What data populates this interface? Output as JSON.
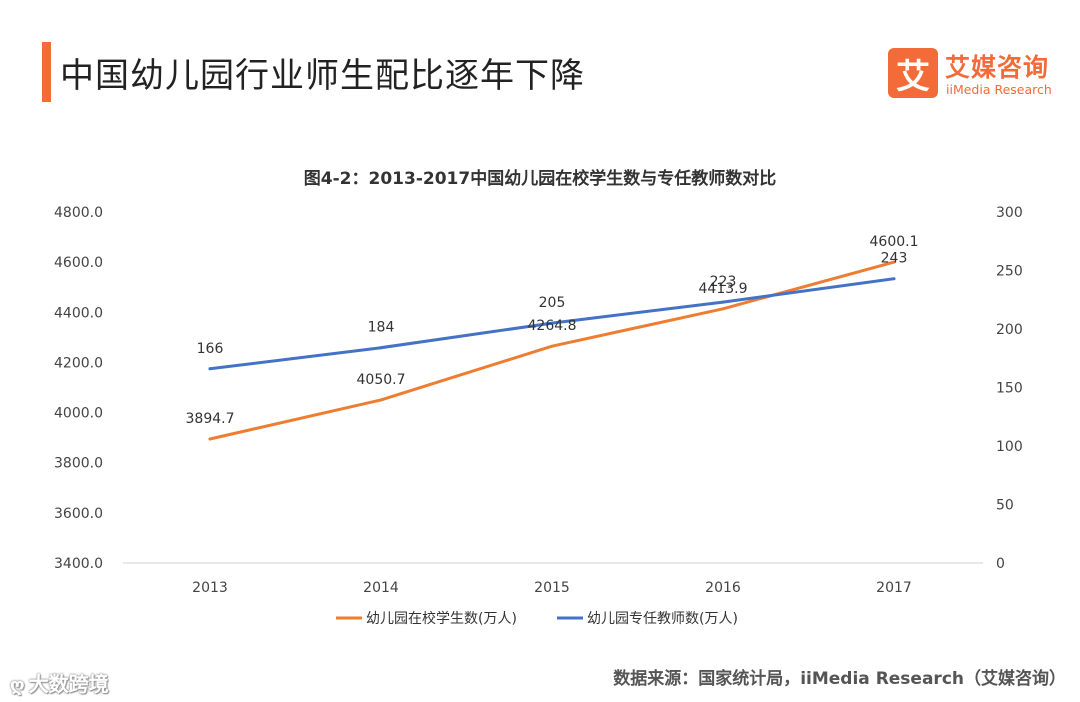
{
  "header": {
    "title": "中国幼儿园行业师生配比逐年下降",
    "accent_color": "#F26B38"
  },
  "logo": {
    "mark": "艾",
    "name_cn": "艾媒咨询",
    "name_en": "iiMedia Research",
    "color": "#F26B38"
  },
  "chart_data": {
    "type": "line",
    "title": "图4-2：2013-2017中国幼儿园在校学生数与专任教师数对比",
    "categories": [
      "2013",
      "2014",
      "2015",
      "2016",
      "2017"
    ],
    "left_axis": {
      "min": 3400,
      "max": 4800,
      "ticks": [
        "4800.0",
        "4600.0",
        "4400.0",
        "4200.0",
        "4000.0",
        "3800.0",
        "3600.0",
        "3400.0"
      ]
    },
    "right_axis": {
      "min": 0,
      "max": 300,
      "ticks": [
        "300",
        "250",
        "200",
        "150",
        "100",
        "50",
        "0"
      ]
    },
    "series": [
      {
        "name": "幼儿园在校学生数(万人)",
        "axis": "left",
        "color": "#ED7D31",
        "values": [
          3894.7,
          4050.7,
          4264.8,
          4413.9,
          4600.1
        ],
        "labels": [
          "3894.7",
          "4050.7",
          "4264.8",
          "4413.9",
          "4600.1"
        ]
      },
      {
        "name": "幼儿园专任教师数(万人)",
        "axis": "right",
        "color": "#4472C4",
        "values": [
          166,
          184,
          205,
          223,
          243
        ],
        "labels": [
          "166",
          "184",
          "205",
          "223",
          "243"
        ]
      }
    ],
    "legend_position": "bottom",
    "grid": false
  },
  "footer": {
    "source": "数据来源：国家统计局，iiMedia Research（艾媒咨询）",
    "watermark": "大数跨境",
    "watermark_icon": "weibo-icon"
  }
}
